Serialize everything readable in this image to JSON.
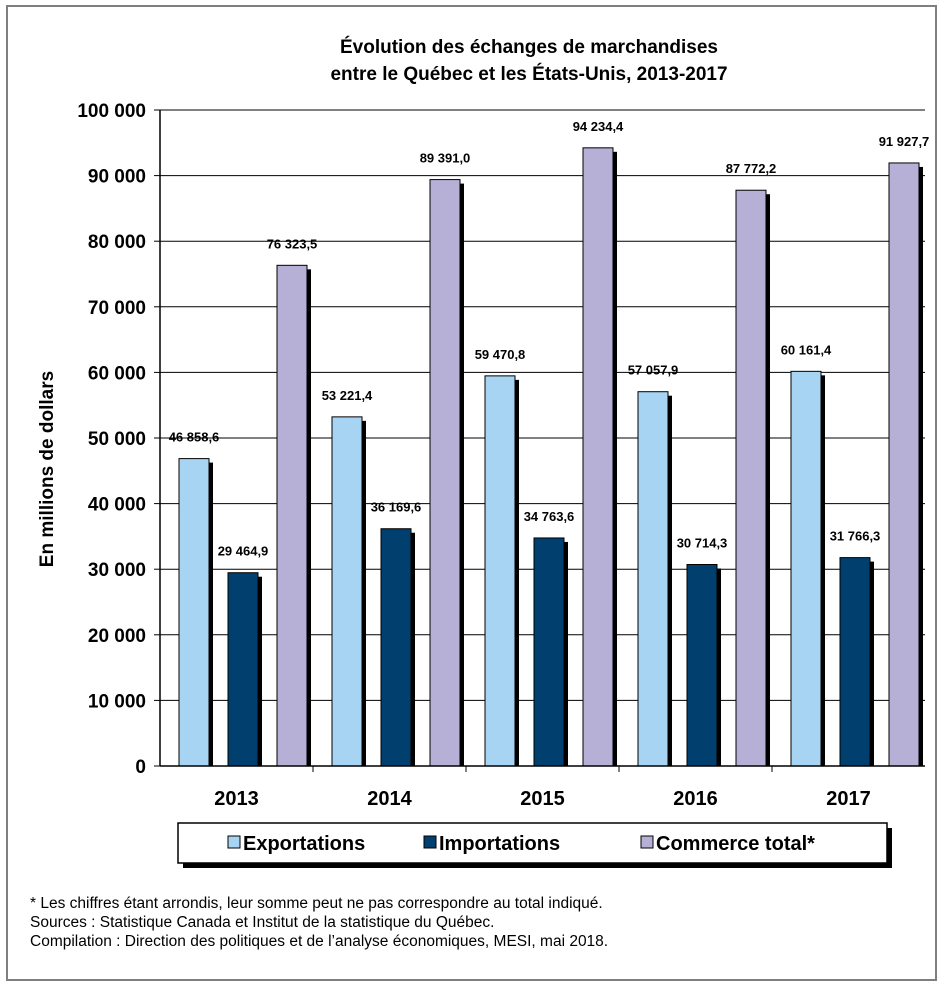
{
  "chart_data": {
    "type": "bar",
    "title": "Évolution des échanges de marchandises",
    "subtitle": "entre le Québec et les États-Unis, 2013-2017",
    "xlabel": "",
    "ylabel": "En millions de dollars",
    "ylim": [
      0,
      100000
    ],
    "yticks": [
      0,
      10000,
      20000,
      30000,
      40000,
      50000,
      60000,
      70000,
      80000,
      90000,
      100000
    ],
    "ytick_labels": [
      "0",
      "10 000",
      "20 000",
      "30 000",
      "40 000",
      "50 000",
      "60 000",
      "70 000",
      "80 000",
      "90 000",
      "100 000"
    ],
    "grid": "horizontal",
    "legend_position": "bottom",
    "categories": [
      "2013",
      "2014",
      "2015",
      "2016",
      "2017"
    ],
    "series": [
      {
        "name": "Exportations",
        "color": "#a6d4f2",
        "values": [
          46858.6,
          53221.4,
          59470.8,
          57057.9,
          60161.4
        ],
        "labels": [
          "46 858,6",
          "53 221,4",
          "59 470,8",
          "57 057,9",
          "60 161,4"
        ]
      },
      {
        "name": "Importations",
        "color": "#003f6e",
        "values": [
          29464.9,
          36169.6,
          34763.6,
          30714.3,
          31766.3
        ],
        "labels": [
          "29 464,9",
          "36 169,6",
          "34 763,6",
          "30 714,3",
          "31 766,3"
        ]
      },
      {
        "name": "Commerce total*",
        "color": "#b6b0d6",
        "values": [
          76323.5,
          89391.0,
          94234.4,
          87772.2,
          91927.7
        ],
        "labels": [
          "76 323,5",
          "89 391,0",
          "94 234,4",
          "87 772,2",
          "91 927,7"
        ]
      }
    ]
  },
  "notes": {
    "footnote": "* Les chiffres étant arrondis, leur somme peut ne pas correspondre au total indiqué.",
    "sources": "Sources : Statistique Canada et Institut de la statistique du Québec.",
    "compilation": "Compilation : Direction des politiques et de l’analyse économiques, MESI, mai 2018."
  }
}
